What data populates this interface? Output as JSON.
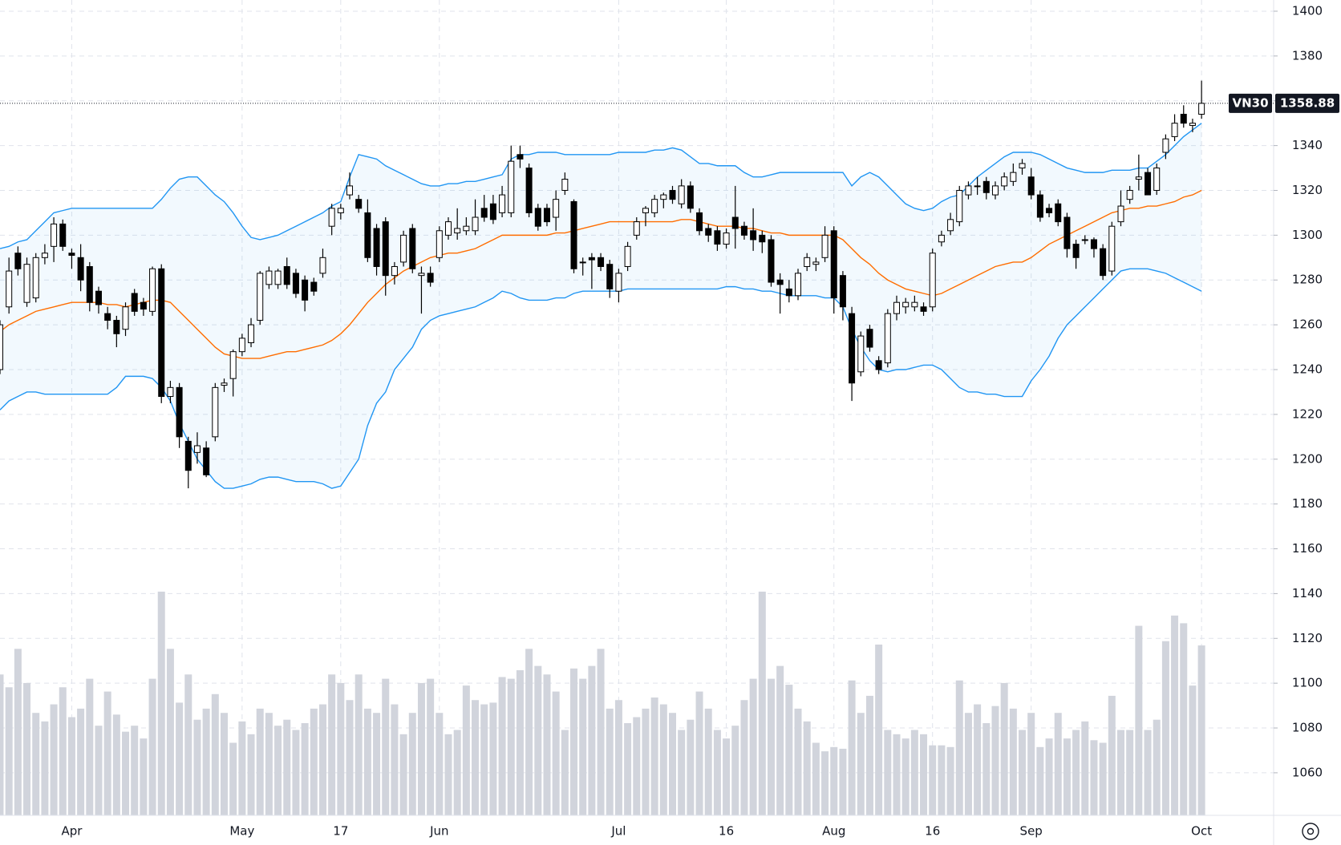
{
  "chart_data": {
    "type": "candlestick",
    "symbol": "VN30",
    "categories": [
      null,
      null,
      null,
      null,
      null,
      null,
      null,
      null,
      "Apr",
      null,
      null,
      null,
      null,
      null,
      null,
      null,
      null,
      null,
      null,
      null,
      null,
      null,
      null,
      null,
      null,
      null,
      null,
      "May",
      null,
      null,
      null,
      null,
      null,
      null,
      null,
      null,
      null,
      null,
      "17",
      null,
      null,
      null,
      null,
      null,
      null,
      null,
      null,
      null,
      null,
      "Jun",
      null,
      null,
      null,
      null,
      null,
      null,
      null,
      null,
      null,
      null,
      null,
      null,
      null,
      null,
      null,
      null,
      null,
      null,
      null,
      "Jul",
      null,
      null,
      null,
      null,
      null,
      null,
      null,
      null,
      null,
      null,
      null,
      "16",
      null,
      null,
      null,
      null,
      null,
      null,
      null,
      null,
      null,
      null,
      null,
      "Aug",
      null,
      null,
      null,
      null,
      null,
      null,
      null,
      null,
      null,
      null,
      "16",
      null,
      null,
      null,
      null,
      null,
      null,
      null,
      null,
      null,
      null,
      "Sep",
      null,
      null,
      null,
      null,
      null,
      null,
      null,
      null,
      null,
      null,
      null,
      null,
      null,
      null,
      null,
      null,
      null,
      null,
      "Oct"
    ],
    "open": [
      1240,
      1268,
      1292,
      1270,
      1272,
      1290,
      1295,
      1305,
      1292,
      1290,
      1286,
      1275,
      1265,
      1262,
      1258,
      1274,
      1270,
      1266,
      1285,
      1228,
      1232,
      1208,
      1203,
      1205,
      1210,
      1233,
      1236,
      1248,
      1252,
      1262,
      1278,
      1278,
      1286,
      1283,
      1280,
      1279,
      1283,
      1304,
      1310,
      1318,
      1316,
      1310,
      1303,
      1306,
      1282,
      1288,
      1303,
      1282,
      1283,
      1290,
      1300,
      1301,
      1302,
      1302,
      1312,
      1314,
      1310,
      1310,
      1336,
      1330,
      1312,
      1312,
      1308,
      1320,
      1315,
      1288,
      1290,
      1290,
      1287,
      1275,
      1286,
      1300,
      1310,
      1310,
      1316,
      1320,
      1314,
      1322,
      1310,
      1303,
      1302,
      1296,
      1308,
      1304,
      1302,
      1300,
      1298,
      1280,
      1276,
      1273,
      1286,
      1287,
      1290,
      1302,
      1282,
      1265,
      1239,
      1258,
      1244,
      1243,
      1265,
      1268,
      1268,
      1268,
      1268,
      1297,
      1302,
      1306,
      1318,
      1322,
      1324,
      1318,
      1322,
      1324,
      1330,
      1326,
      1318,
      1312,
      1314,
      1308,
      1296,
      1298,
      1298,
      1294,
      1284,
      1306,
      1316,
      1325,
      1328,
      1320,
      1337,
      1344,
      1354,
      1349,
      1354
    ],
    "high": [
      1262,
      1290,
      1295,
      1290,
      1292,
      1296,
      1308,
      1307,
      1294,
      1296,
      1288,
      1277,
      1268,
      1264,
      1270,
      1276,
      1272,
      1286,
      1287,
      1235,
      1234,
      1210,
      1212,
      1208,
      1234,
      1236,
      1249,
      1256,
      1263,
      1284,
      1286,
      1285,
      1290,
      1285,
      1282,
      1281,
      1294,
      1314,
      1314,
      1328,
      1318,
      1316,
      1305,
      1308,
      1288,
      1302,
      1305,
      1286,
      1286,
      1304,
      1308,
      1312,
      1308,
      1316,
      1318,
      1318,
      1322,
      1340,
      1340,
      1332,
      1314,
      1314,
      1320,
      1328,
      1316,
      1290,
      1292,
      1292,
      1289,
      1285,
      1297,
      1308,
      1313,
      1318,
      1319,
      1322,
      1325,
      1324,
      1312,
      1305,
      1304,
      1303,
      1322,
      1306,
      1312,
      1302,
      1300,
      1283,
      1280,
      1285,
      1292,
      1290,
      1304,
      1304,
      1284,
      1268,
      1257,
      1260,
      1246,
      1267,
      1273,
      1272,
      1273,
      1270,
      1294,
      1302,
      1310,
      1322,
      1324,
      1326,
      1326,
      1324,
      1328,
      1332,
      1334,
      1330,
      1320,
      1314,
      1316,
      1310,
      1298,
      1300,
      1299,
      1296,
      1306,
      1320,
      1322,
      1336,
      1330,
      1332,
      1345,
      1354,
      1358,
      1352,
      1369
    ],
    "low": [
      1238,
      1265,
      1282,
      1268,
      1270,
      1287,
      1288,
      1293,
      1285,
      1275,
      1266,
      1265,
      1258,
      1250,
      1255,
      1264,
      1264,
      1264,
      1225,
      1225,
      1205,
      1187,
      1198,
      1192,
      1208,
      1230,
      1228,
      1246,
      1250,
      1260,
      1276,
      1276,
      1276,
      1272,
      1266,
      1273,
      1281,
      1300,
      1307,
      1316,
      1310,
      1288,
      1282,
      1273,
      1278,
      1286,
      1283,
      1265,
      1277,
      1288,
      1298,
      1298,
      1300,
      1300,
      1306,
      1305,
      1308,
      1308,
      1330,
      1308,
      1302,
      1304,
      1302,
      1318,
      1283,
      1282,
      1276,
      1284,
      1272,
      1270,
      1284,
      1298,
      1304,
      1308,
      1312,
      1314,
      1312,
      1310,
      1300,
      1297,
      1293,
      1294,
      1294,
      1298,
      1293,
      1292,
      1277,
      1265,
      1270,
      1271,
      1284,
      1284,
      1288,
      1265,
      1262,
      1226,
      1237,
      1248,
      1238,
      1241,
      1262,
      1265,
      1266,
      1264,
      1266,
      1295,
      1300,
      1304,
      1316,
      1318,
      1316,
      1316,
      1320,
      1322,
      1327,
      1316,
      1306,
      1308,
      1304,
      1290,
      1285,
      1296,
      1290,
      1280,
      1282,
      1304,
      1314,
      1320,
      1318,
      1318,
      1334,
      1342,
      1348,
      1346,
      1352
    ],
    "close": [
      1260,
      1284,
      1285,
      1287,
      1290,
      1292,
      1305,
      1295,
      1291,
      1280,
      1270,
      1269,
      1262,
      1256,
      1268,
      1266,
      1267,
      1285,
      1228,
      1232,
      1210,
      1195,
      1206,
      1193,
      1232,
      1234,
      1248,
      1254,
      1260,
      1283,
      1284,
      1284,
      1278,
      1274,
      1271,
      1275,
      1290,
      1312,
      1312,
      1322,
      1312,
      1290,
      1286,
      1282,
      1286,
      1300,
      1285,
      1283,
      1279,
      1302,
      1306,
      1303,
      1304,
      1308,
      1308,
      1307,
      1318,
      1333,
      1334,
      1310,
      1304,
      1306,
      1316,
      1325,
      1285,
      1288,
      1289,
      1286,
      1276,
      1283,
      1295,
      1306,
      1312,
      1316,
      1318,
      1316,
      1322,
      1312,
      1302,
      1300,
      1296,
      1301,
      1303,
      1300,
      1298,
      1297,
      1279,
      1278,
      1273,
      1283,
      1290,
      1288,
      1300,
      1272,
      1268,
      1234,
      1255,
      1250,
      1240,
      1265,
      1270,
      1270,
      1270,
      1266,
      1292,
      1300,
      1307,
      1320,
      1322,
      1322,
      1319,
      1322,
      1326,
      1328,
      1332,
      1318,
      1308,
      1310,
      1306,
      1294,
      1290,
      1298,
      1294,
      1282,
      1304,
      1313,
      1320,
      1326,
      1318,
      1330,
      1343,
      1350,
      1350,
      1350,
      1358.88
    ],
    "volume": [
      165,
      150,
      195,
      155,
      120,
      110,
      130,
      150,
      115,
      125,
      160,
      105,
      145,
      118,
      98,
      105,
      90,
      160,
      262,
      195,
      132,
      165,
      112,
      125,
      142,
      120,
      85,
      110,
      95,
      125,
      120,
      105,
      112,
      100,
      108,
      125,
      130,
      165,
      155,
      135,
      165,
      125,
      120,
      160,
      130,
      95,
      120,
      155,
      160,
      120,
      95,
      100,
      152,
      135,
      130,
      132,
      162,
      160,
      170,
      195,
      175,
      165,
      145,
      100,
      172,
      160,
      175,
      195,
      125,
      135,
      108,
      115,
      125,
      138,
      130,
      120,
      100,
      112,
      145,
      125,
      100,
      90,
      105,
      135,
      160,
      262,
      160,
      175,
      153,
      125,
      110,
      85,
      75,
      80,
      78,
      158,
      120,
      140,
      200,
      100,
      95,
      90,
      100,
      95,
      82,
      82,
      80,
      158,
      120,
      130,
      108,
      128,
      155,
      125,
      100,
      120,
      80,
      90,
      120,
      90,
      100,
      110,
      88,
      85,
      140,
      100,
      100,
      222,
      100,
      112,
      204,
      234,
      225,
      152,
      199
    ],
    "vlim": [
      0,
      955
    ],
    "bands": [
      {
        "name": "Upper",
        "color": "#2196f3",
        "values": [
          1294,
          1295,
          1297,
          1298,
          1302,
          1306,
          1310,
          1311,
          1312,
          1312,
          1312,
          1312,
          1312,
          1312,
          1312,
          1312,
          1312,
          1312,
          1316,
          1321,
          1325,
          1326,
          1326,
          1322,
          1318,
          1315,
          1310,
          1304,
          1299,
          1298,
          1299,
          1300,
          1302,
          1304,
          1306,
          1308,
          1310,
          1313,
          1315,
          1326,
          1336,
          1335,
          1334,
          1331,
          1329,
          1327,
          1325,
          1323,
          1322,
          1322,
          1323,
          1323,
          1324,
          1324,
          1325,
          1326,
          1327,
          1334,
          1336,
          1336,
          1337,
          1337,
          1337,
          1336,
          1336,
          1336,
          1336,
          1336,
          1336,
          1337,
          1337,
          1337,
          1337,
          1338,
          1338,
          1339,
          1338,
          1335,
          1332,
          1332,
          1331,
          1331,
          1331,
          1328,
          1326,
          1326,
          1327,
          1328,
          1328,
          1328,
          1328,
          1328,
          1328,
          1328,
          1328,
          1322,
          1326,
          1328,
          1326,
          1322,
          1318,
          1314,
          1312,
          1311,
          1312,
          1315,
          1317,
          1318,
          1322,
          1326,
          1329,
          1332,
          1335,
          1337,
          1337,
          1337,
          1336,
          1334,
          1332,
          1330,
          1329,
          1328,
          1328,
          1328,
          1329,
          1329,
          1329,
          1330,
          1330,
          1333,
          1336,
          1340,
          1344,
          1347,
          1350
        ]
      },
      {
        "name": "Basis",
        "color": "#ff6d00",
        "values": [
          1257,
          1260,
          1262,
          1264,
          1266,
          1267,
          1268,
          1269,
          1270,
          1270,
          1270,
          1270,
          1269,
          1269,
          1268,
          1269,
          1270,
          1271,
          1271,
          1270,
          1266,
          1262,
          1258,
          1254,
          1250,
          1247,
          1246,
          1245,
          1245,
          1245,
          1246,
          1247,
          1248,
          1248,
          1249,
          1250,
          1251,
          1253,
          1256,
          1260,
          1265,
          1270,
          1274,
          1278,
          1281,
          1284,
          1286,
          1288,
          1290,
          1291,
          1292,
          1292,
          1293,
          1294,
          1296,
          1298,
          1300,
          1300,
          1300,
          1300,
          1300,
          1300,
          1301,
          1301,
          1302,
          1303,
          1304,
          1305,
          1306,
          1306,
          1306,
          1306,
          1306,
          1306,
          1306,
          1306,
          1307,
          1307,
          1306,
          1305,
          1304,
          1304,
          1304,
          1303,
          1303,
          1302,
          1301,
          1301,
          1300,
          1300,
          1300,
          1300,
          1300,
          1300,
          1298,
          1294,
          1290,
          1287,
          1283,
          1280,
          1278,
          1276,
          1275,
          1274,
          1273,
          1274,
          1276,
          1278,
          1280,
          1282,
          1284,
          1286,
          1287,
          1288,
          1288,
          1290,
          1293,
          1296,
          1298,
          1300,
          1302,
          1304,
          1306,
          1308,
          1310,
          1311,
          1312,
          1312,
          1313,
          1313,
          1314,
          1315,
          1317,
          1318,
          1320
        ]
      },
      {
        "name": "Lower",
        "color": "#2196f3",
        "values": [
          1222,
          1226,
          1228,
          1230,
          1230,
          1229,
          1229,
          1229,
          1229,
          1229,
          1229,
          1229,
          1229,
          1232,
          1237,
          1237,
          1237,
          1236,
          1232,
          1226,
          1216,
          1208,
          1200,
          1195,
          1190,
          1187,
          1187,
          1188,
          1189,
          1191,
          1192,
          1192,
          1191,
          1190,
          1190,
          1190,
          1189,
          1187,
          1188,
          1194,
          1200,
          1215,
          1225,
          1230,
          1240,
          1245,
          1250,
          1258,
          1262,
          1264,
          1265,
          1266,
          1267,
          1268,
          1270,
          1272,
          1275,
          1274,
          1272,
          1271,
          1271,
          1271,
          1272,
          1272,
          1274,
          1275,
          1275,
          1275,
          1275,
          1275,
          1276,
          1276,
          1276,
          1276,
          1276,
          1276,
          1276,
          1276,
          1276,
          1276,
          1276,
          1277,
          1277,
          1276,
          1276,
          1275,
          1275,
          1274,
          1273,
          1273,
          1273,
          1273,
          1272,
          1272,
          1268,
          1258,
          1250,
          1244,
          1240,
          1239,
          1240,
          1240,
          1241,
          1242,
          1242,
          1240,
          1236,
          1232,
          1230,
          1230,
          1229,
          1229,
          1228,
          1228,
          1228,
          1235,
          1240,
          1246,
          1254,
          1260,
          1264,
          1268,
          1272,
          1276,
          1280,
          1284,
          1285,
          1285,
          1285,
          1284,
          1283,
          1281,
          1279,
          1277,
          1275
        ]
      }
    ],
    "ylim": [
      1041,
      1405
    ],
    "yticks": [
      1060,
      1080,
      1100,
      1120,
      1140,
      1160,
      1180,
      1200,
      1220,
      1240,
      1260,
      1280,
      1300,
      1320,
      1340,
      1360,
      1380,
      1400
    ],
    "grid": true
  }
}
